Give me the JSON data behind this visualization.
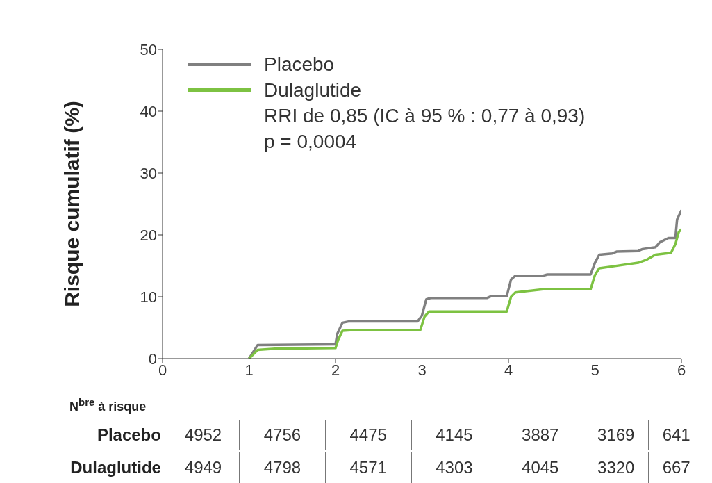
{
  "chart_data": {
    "type": "line",
    "ylabel": "Risque cumulatif (%)",
    "xlim": [
      0,
      6
    ],
    "xticks": [
      0,
      1,
      2,
      3,
      4,
      5,
      6
    ],
    "ylim": [
      0,
      50
    ],
    "yticks": [
      0,
      10,
      20,
      30,
      40,
      50
    ],
    "legend": "top left",
    "series": [
      {
        "name": "Placebo",
        "color": "#808080",
        "x": [
          1,
          1.1,
          2,
          2.02,
          2.08,
          2.15,
          2.95,
          3.0,
          3.05,
          3.1,
          3.75,
          3.8,
          3.98,
          4.03,
          4.08,
          4.4,
          4.45,
          4.95,
          5.0,
          5.05,
          5.2,
          5.25,
          5.5,
          5.55,
          5.7,
          5.75,
          5.85,
          5.93,
          5.95,
          6
        ],
        "values": [
          0,
          2.2,
          2.3,
          4,
          5.8,
          6.0,
          6.0,
          7,
          9.6,
          9.8,
          9.8,
          10.1,
          10.1,
          12.8,
          13.4,
          13.4,
          13.6,
          13.6,
          15.5,
          16.8,
          17.0,
          17.3,
          17.4,
          17.7,
          18.0,
          18.8,
          19.5,
          19.5,
          22.5,
          24
        ]
      },
      {
        "name": "Dulaglutide",
        "color": "#7dc242",
        "x": [
          1,
          1.1,
          1.3,
          2,
          2.03,
          2.08,
          2.2,
          2.98,
          3.03,
          3.08,
          3.98,
          4.03,
          4.08,
          4.4,
          4.95,
          5.0,
          5.05,
          5.2,
          5.5,
          5.6,
          5.7,
          5.88,
          5.93,
          5.97,
          6
        ],
        "values": [
          0,
          1.4,
          1.6,
          1.7,
          3,
          4.5,
          4.6,
          4.6,
          6.8,
          7.6,
          7.6,
          10.0,
          10.7,
          11.2,
          11.2,
          13.5,
          14.6,
          14.9,
          15.5,
          16.0,
          16.8,
          17.1,
          18.5,
          20.5,
          20.9
        ]
      }
    ],
    "annotations": [
      "RRI de 0,85 (IC à 95 % : 0,77 à 0,93)",
      "p = 0,0004",
      "N$^{bre}$ à risque",
      "4952",
      "4756",
      "4475",
      "4145",
      "3887",
      "3169",
      "641",
      "4949",
      "4798",
      "4571",
      "4303",
      "4045",
      "3320",
      "667"
    ]
  }
}
